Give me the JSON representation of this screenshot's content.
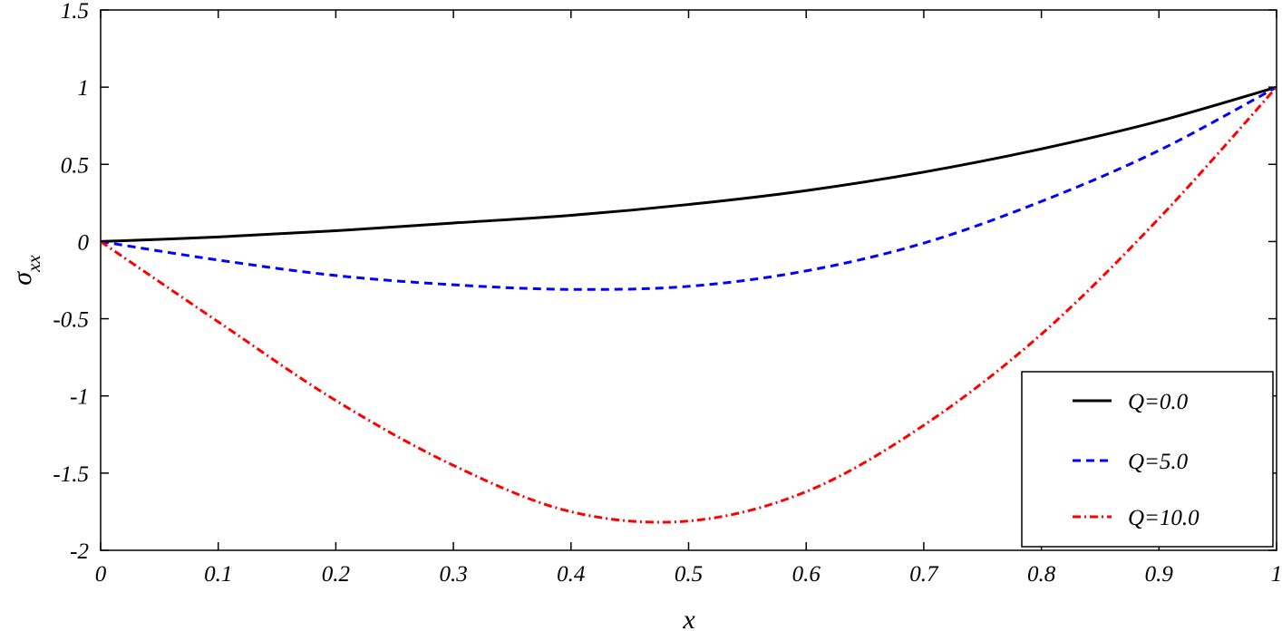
{
  "chart_data": {
    "type": "line",
    "xlabel": "x",
    "ylabel": "σ",
    "ylabel_subscript": "xx",
    "xlim": [
      0,
      1
    ],
    "ylim": [
      -2,
      1.5
    ],
    "x_ticks": [
      0,
      0.1,
      0.2,
      0.3,
      0.4,
      0.5,
      0.6,
      0.7,
      0.8,
      0.9,
      1
    ],
    "x_tick_labels": [
      "0",
      "0.1",
      "0.2",
      "0.3",
      "0.4",
      "0.5",
      "0.6",
      "0.7",
      "0.8",
      "0.9",
      "1"
    ],
    "y_ticks": [
      -2,
      -1.5,
      -1,
      -0.5,
      0,
      0.5,
      1,
      1.5
    ],
    "y_tick_labels": [
      "-2",
      "-1.5",
      "-1",
      "-0.5",
      "0",
      "0.5",
      "1",
      "1.5"
    ],
    "grid": false,
    "legend_position": "bottom-right",
    "series": [
      {
        "name": "Q=0.0",
        "color": "#000000",
        "style": "solid",
        "x": [
          0,
          0.1,
          0.2,
          0.3,
          0.4,
          0.5,
          0.6,
          0.7,
          0.8,
          0.9,
          1
        ],
        "y": [
          0,
          0.03,
          0.07,
          0.12,
          0.17,
          0.24,
          0.33,
          0.45,
          0.6,
          0.78,
          1
        ]
      },
      {
        "name": "Q=5.0",
        "color": "#0000ff",
        "style": "dashed",
        "x": [
          0,
          0.1,
          0.2,
          0.3,
          0.4,
          0.5,
          0.6,
          0.7,
          0.8,
          0.9,
          1
        ],
        "y": [
          0,
          -0.12,
          -0.22,
          -0.28,
          -0.31,
          -0.29,
          -0.19,
          -0.01,
          0.26,
          0.59,
          1
        ]
      },
      {
        "name": "Q=10.0",
        "color": "#ff0000",
        "style": "dashdot",
        "x": [
          0,
          0.1,
          0.2,
          0.3,
          0.4,
          0.5,
          0.6,
          0.7,
          0.8,
          0.9,
          1
        ],
        "y": [
          0,
          -0.52,
          -1.03,
          -1.45,
          -1.75,
          -1.81,
          -1.62,
          -1.19,
          -0.6,
          0.15,
          1
        ]
      }
    ]
  }
}
